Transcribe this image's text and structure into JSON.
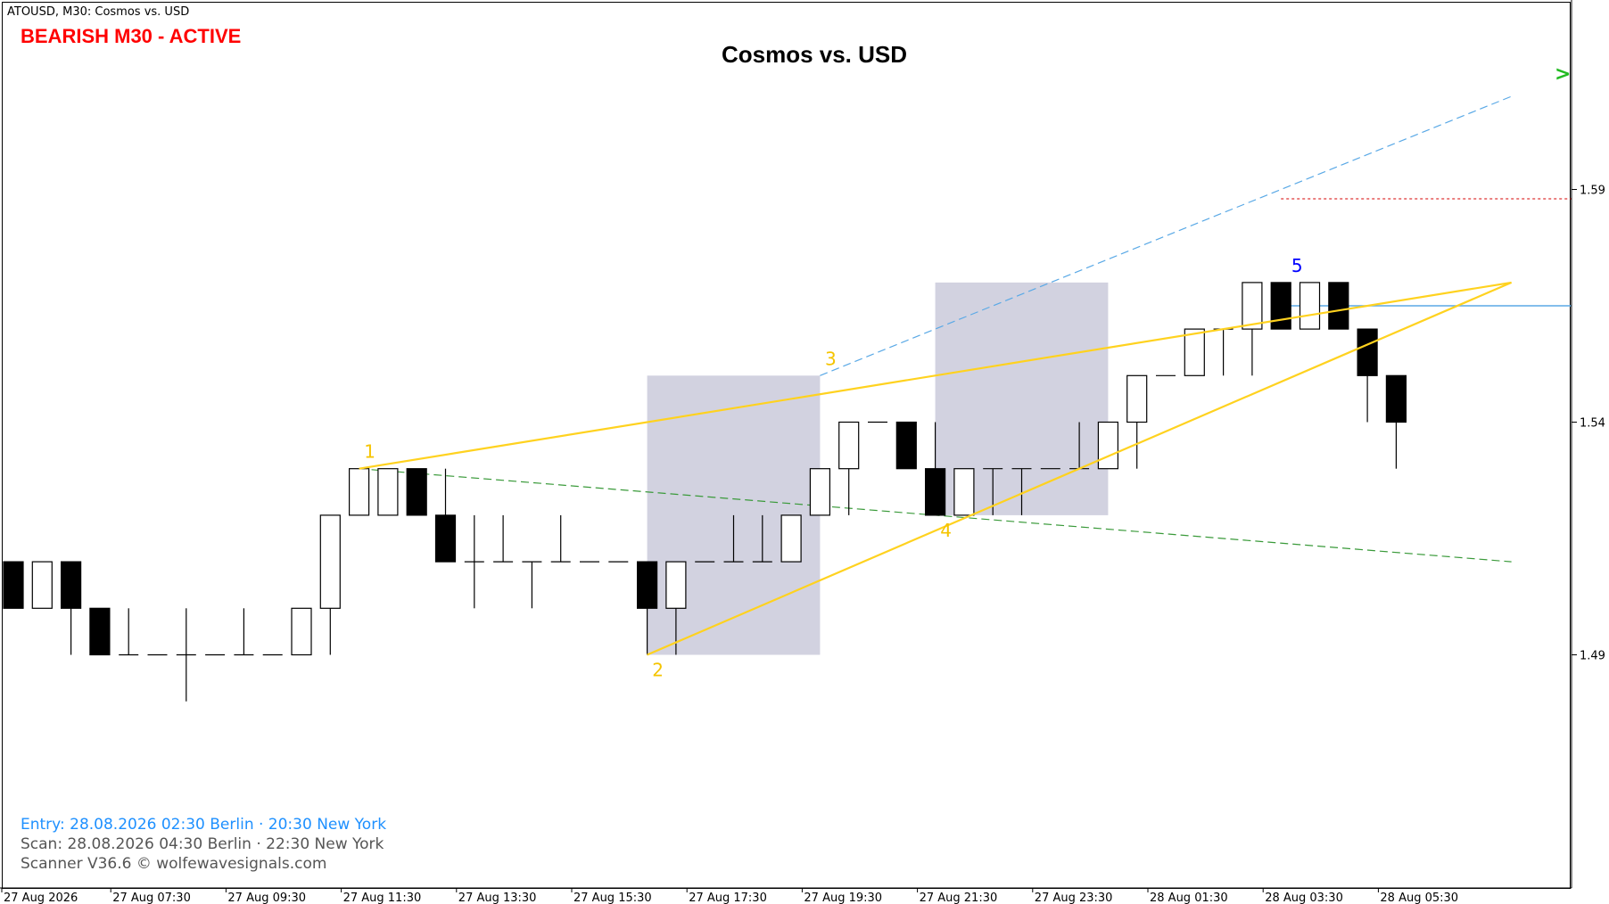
{
  "header": {
    "symbol_info": "ATOUSD, M30:  Cosmos vs. USD",
    "status": "BEARISH M30 - ACTIVE",
    "title": "Cosmos vs. USD"
  },
  "footer": {
    "entry": "Entry: 28.08.2026  02:30 Berlin · 20:30 New York",
    "scan": "Scan:  28.08.2026  04:30 Berlin · 22:30 New York",
    "scanner": "Scanner V36.6   © wolfewavesignals.com"
  },
  "colors": {
    "entry_text": "#1e90ff",
    "info_text": "#555555",
    "status": "#ff0000",
    "wave_line": "#ffd21f",
    "wave_label": "#f5c400",
    "point5_label": "#0000ff",
    "target_line": "#5aa9e6",
    "epa_line": "#3a9a3a",
    "stop_line": "#d40000",
    "zone": "#d2d2e0",
    "arrow": "#22bb22"
  },
  "chart_data": {
    "type": "candlestick",
    "timeframe": "M30",
    "y_ticks": [
      1.59,
      1.54,
      1.49
    ],
    "ylim": [
      1.43,
      1.63
    ],
    "x_tick_labels": [
      {
        "index": 0,
        "label": "27 Aug 2026"
      },
      {
        "index": 4,
        "label": "27 Aug 07:30"
      },
      {
        "index": 8,
        "label": "27 Aug 09:30"
      },
      {
        "index": 12,
        "label": "27 Aug 11:30"
      },
      {
        "index": 16,
        "label": "27 Aug 13:30"
      },
      {
        "index": 20,
        "label": "27 Aug 15:30"
      },
      {
        "index": 24,
        "label": "27 Aug 17:30"
      },
      {
        "index": 28,
        "label": "27 Aug 19:30"
      },
      {
        "index": 32,
        "label": "27 Aug 21:30"
      },
      {
        "index": 36,
        "label": "27 Aug 23:30"
      },
      {
        "index": 40,
        "label": "28 Aug 01:30"
      },
      {
        "index": 44,
        "label": "28 Aug 03:30"
      },
      {
        "index": 48,
        "label": "28 Aug 05:30"
      }
    ],
    "candles": [
      {
        "o": 1.51,
        "h": 1.51,
        "l": 1.5,
        "c": 1.5
      },
      {
        "o": 1.5,
        "h": 1.51,
        "l": 1.5,
        "c": 1.51
      },
      {
        "o": 1.51,
        "h": 1.51,
        "l": 1.49,
        "c": 1.5
      },
      {
        "o": 1.5,
        "h": 1.5,
        "l": 1.49,
        "c": 1.49
      },
      {
        "o": 1.49,
        "h": 1.5,
        "l": 1.49,
        "c": 1.49
      },
      {
        "o": 1.49,
        "h": 1.49,
        "l": 1.49,
        "c": 1.49
      },
      {
        "o": 1.49,
        "h": 1.5,
        "l": 1.48,
        "c": 1.49
      },
      {
        "o": 1.49,
        "h": 1.49,
        "l": 1.49,
        "c": 1.49
      },
      {
        "o": 1.49,
        "h": 1.5,
        "l": 1.49,
        "c": 1.49
      },
      {
        "o": 1.49,
        "h": 1.49,
        "l": 1.49,
        "c": 1.49
      },
      {
        "o": 1.49,
        "h": 1.5,
        "l": 1.49,
        "c": 1.5
      },
      {
        "o": 1.5,
        "h": 1.52,
        "l": 1.49,
        "c": 1.52
      },
      {
        "o": 1.52,
        "h": 1.53,
        "l": 1.52,
        "c": 1.53
      },
      {
        "o": 1.52,
        "h": 1.53,
        "l": 1.52,
        "c": 1.53
      },
      {
        "o": 1.53,
        "h": 1.53,
        "l": 1.52,
        "c": 1.52
      },
      {
        "o": 1.52,
        "h": 1.53,
        "l": 1.51,
        "c": 1.51
      },
      {
        "o": 1.51,
        "h": 1.52,
        "l": 1.5,
        "c": 1.51
      },
      {
        "o": 1.51,
        "h": 1.52,
        "l": 1.51,
        "c": 1.51
      },
      {
        "o": 1.51,
        "h": 1.51,
        "l": 1.5,
        "c": 1.51
      },
      {
        "o": 1.51,
        "h": 1.52,
        "l": 1.51,
        "c": 1.51
      },
      {
        "o": 1.51,
        "h": 1.51,
        "l": 1.51,
        "c": 1.51
      },
      {
        "o": 1.51,
        "h": 1.51,
        "l": 1.51,
        "c": 1.51
      },
      {
        "o": 1.51,
        "h": 1.51,
        "l": 1.49,
        "c": 1.5
      },
      {
        "o": 1.5,
        "h": 1.51,
        "l": 1.49,
        "c": 1.51
      },
      {
        "o": 1.51,
        "h": 1.51,
        "l": 1.51,
        "c": 1.51
      },
      {
        "o": 1.51,
        "h": 1.52,
        "l": 1.51,
        "c": 1.51
      },
      {
        "o": 1.51,
        "h": 1.52,
        "l": 1.51,
        "c": 1.51
      },
      {
        "o": 1.51,
        "h": 1.52,
        "l": 1.51,
        "c": 1.52
      },
      {
        "o": 1.52,
        "h": 1.53,
        "l": 1.52,
        "c": 1.53
      },
      {
        "o": 1.53,
        "h": 1.54,
        "l": 1.52,
        "c": 1.54
      },
      {
        "o": 1.54,
        "h": 1.54,
        "l": 1.54,
        "c": 1.54
      },
      {
        "o": 1.54,
        "h": 1.54,
        "l": 1.53,
        "c": 1.53
      },
      {
        "o": 1.53,
        "h": 1.54,
        "l": 1.52,
        "c": 1.52
      },
      {
        "o": 1.52,
        "h": 1.53,
        "l": 1.52,
        "c": 1.53
      },
      {
        "o": 1.53,
        "h": 1.53,
        "l": 1.52,
        "c": 1.53
      },
      {
        "o": 1.53,
        "h": 1.53,
        "l": 1.52,
        "c": 1.53
      },
      {
        "o": 1.53,
        "h": 1.53,
        "l": 1.53,
        "c": 1.53
      },
      {
        "o": 1.53,
        "h": 1.54,
        "l": 1.53,
        "c": 1.53
      },
      {
        "o": 1.53,
        "h": 1.54,
        "l": 1.53,
        "c": 1.54
      },
      {
        "o": 1.54,
        "h": 1.55,
        "l": 1.53,
        "c": 1.55
      },
      {
        "o": 1.55,
        "h": 1.55,
        "l": 1.55,
        "c": 1.55
      },
      {
        "o": 1.55,
        "h": 1.56,
        "l": 1.55,
        "c": 1.56
      },
      {
        "o": 1.56,
        "h": 1.56,
        "l": 1.55,
        "c": 1.56
      },
      {
        "o": 1.56,
        "h": 1.57,
        "l": 1.55,
        "c": 1.57
      },
      {
        "o": 1.57,
        "h": 1.57,
        "l": 1.56,
        "c": 1.56
      },
      {
        "o": 1.56,
        "h": 1.57,
        "l": 1.56,
        "c": 1.57
      },
      {
        "o": 1.57,
        "h": 1.57,
        "l": 1.56,
        "c": 1.56
      },
      {
        "o": 1.56,
        "h": 1.56,
        "l": 1.54,
        "c": 1.55
      },
      {
        "o": 1.55,
        "h": 1.55,
        "l": 1.53,
        "c": 1.54
      }
    ],
    "wolfe_points": [
      {
        "label": "1",
        "index": 12,
        "price": 1.53
      },
      {
        "label": "2",
        "index": 22,
        "price": 1.49
      },
      {
        "label": "3",
        "index": 28,
        "price": 1.55
      },
      {
        "label": "4",
        "index": 32,
        "price": 1.52
      },
      {
        "label": "5",
        "index": 44,
        "price": 1.57
      }
    ],
    "wave_lines": [
      {
        "from": {
          "index": 12,
          "price": 1.53
        },
        "to": {
          "index": 52,
          "price": 1.57
        }
      },
      {
        "from": {
          "index": 22,
          "price": 1.49
        },
        "to": {
          "index": 52,
          "price": 1.57
        }
      }
    ],
    "target_line": {
      "from": {
        "index": 28,
        "price": 1.55
      },
      "to": {
        "index": 52,
        "price": 1.61
      }
    },
    "epa_line": {
      "from": {
        "index": 12,
        "price": 1.53
      },
      "to": {
        "index": 52,
        "price": 1.51
      }
    },
    "entry_level": {
      "price": 1.565,
      "from_index": 44
    },
    "stop_level": {
      "price": 1.588,
      "from_index": 44
    },
    "zones": [
      {
        "from_index": 22,
        "to_index": 28,
        "price_low": 1.49,
        "price_high": 1.55
      },
      {
        "from_index": 32,
        "to_index": 38,
        "price_low": 1.52,
        "price_high": 1.57
      }
    ]
  }
}
